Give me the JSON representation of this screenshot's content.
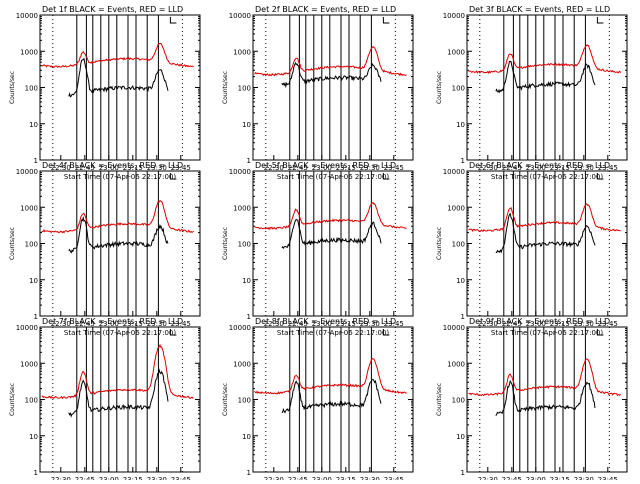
{
  "chart_data": {
    "type": "line",
    "common": {
      "ylabel": "Counts/sec",
      "xlabel": "Start Time (07-Apr-06 22:17:00)",
      "x_ticks": [
        "22:30",
        "22:45",
        "23:00",
        "23:15",
        "23:30",
        "23:45"
      ],
      "x_tick_minutes": [
        30,
        45,
        60,
        75,
        90,
        105
      ],
      "xlim_minutes": [
        17,
        117
      ],
      "y_scale": "log",
      "ylim": [
        1,
        10000
      ],
      "y_ticks": [
        "1",
        "10",
        "100",
        "1000",
        "10000"
      ],
      "y_tick_values": [
        1,
        10,
        100,
        1000,
        10000
      ],
      "solid_lines_minutes": [
        40,
        46,
        50,
        55,
        60,
        65,
        72,
        77,
        84,
        91
      ],
      "dotted_lines_minutes": [
        25,
        106
      ],
      "series_colors": {
        "events": "#000000",
        "lld": "#dd0000"
      },
      "peaks_minutes": [
        44,
        92
      ]
    },
    "panels": [
      {
        "title": "Det 1f BLACK = Events, RED = LLD",
        "events_base": 80,
        "events_peak1": 600,
        "events_peak2": 300,
        "lld_base": 500,
        "lld_peak1": 1000,
        "lld_peak2": 1600
      },
      {
        "title": "Det 2f BLACK = Events, RED = LLD",
        "events_base": 150,
        "events_peak1": 500,
        "events_peak2": 400,
        "lld_base": 300,
        "lld_peak1": 700,
        "lld_peak2": 1300
      },
      {
        "title": "Det 3f BLACK = Events, RED = LLD",
        "events_base": 100,
        "events_peak1": 500,
        "events_peak2": 400,
        "lld_base": 350,
        "lld_peak1": 900,
        "lld_peak2": 1500
      },
      {
        "title": "Det 4f BLACK = Events, RED = LLD",
        "events_base": 80,
        "events_peak1": 500,
        "events_peak2": 300,
        "lld_base": 280,
        "lld_peak1": 700,
        "lld_peak2": 1500
      },
      {
        "title": "Det 5f BLACK = Events, RED = LLD",
        "events_base": 100,
        "events_peak1": 500,
        "events_peak2": 350,
        "lld_base": 350,
        "lld_peak1": 900,
        "lld_peak2": 1300
      },
      {
        "title": "Det 6f BLACK = Events, RED = LLD",
        "events_base": 80,
        "events_peak1": 600,
        "events_peak2": 300,
        "lld_base": 300,
        "lld_peak1": 1000,
        "lld_peak2": 1200
      },
      {
        "title": "Det 7f BLACK = Events, RED = LLD",
        "events_base": 50,
        "events_peak1": 300,
        "events_peak2": 600,
        "lld_base": 150,
        "lld_peak1": 600,
        "lld_peak2": 3000
      },
      {
        "title": "Det 8f BLACK = Events, RED = LLD",
        "events_base": 60,
        "events_peak1": 300,
        "events_peak2": 350,
        "lld_base": 200,
        "lld_peak1": 500,
        "lld_peak2": 1300
      },
      {
        "title": "Det 9f BLACK = Events, RED = LLD",
        "events_base": 50,
        "events_peak1": 300,
        "events_peak2": 300,
        "lld_base": 180,
        "lld_peak1": 500,
        "lld_peak2": 1300
      }
    ]
  }
}
